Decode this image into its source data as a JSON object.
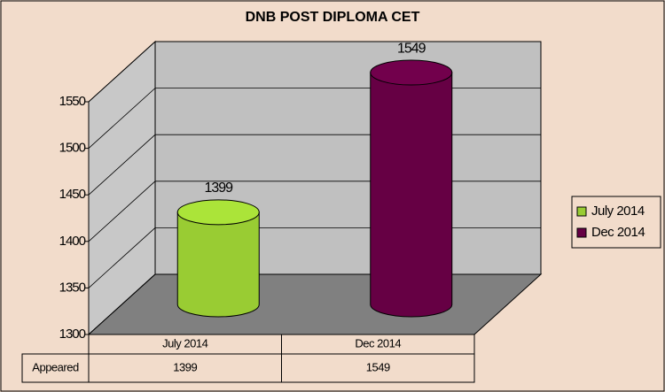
{
  "chart_data": {
    "type": "cylinder",
    "title": "DNB POST DIPLOMA CET",
    "categories": [
      "July 2014",
      "Dec 2014"
    ],
    "colors": [
      "#99cc33",
      "#660044"
    ],
    "series": [
      {
        "name": "Appeared",
        "values": [
          1399,
          1549
        ]
      }
    ],
    "ylim": [
      1300,
      1550
    ],
    "yticks": [
      1300,
      1350,
      1400,
      1450,
      1500,
      1550
    ],
    "grid": true,
    "legend": "right"
  }
}
